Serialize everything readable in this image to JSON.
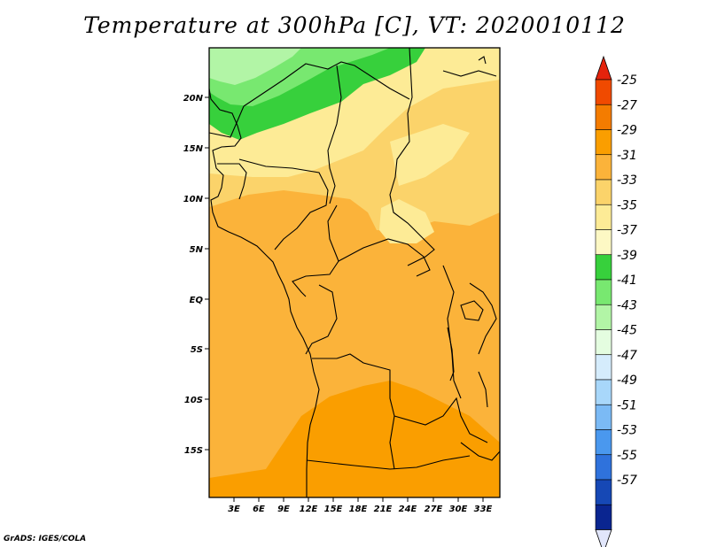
{
  "title": "Temperature at 300hPa [C], VT: 2020010112",
  "credit": "GrADS: IGES/COLA",
  "lat_labels": [
    "20N",
    "15N",
    "10N",
    "5N",
    "EQ",
    "5S",
    "10S",
    "15S"
  ],
  "lon_labels": [
    "3E",
    "6E",
    "9E",
    "12E",
    "15E",
    "18E",
    "21E",
    "24E",
    "27E",
    "30E",
    "33E"
  ],
  "colorbar": {
    "labels": [
      "-25",
      "-27",
      "-29",
      "-31",
      "-33",
      "-35",
      "-37",
      "-39",
      "-41",
      "-43",
      "-45",
      "-47",
      "-49",
      "-51",
      "-53",
      "-55",
      "-57"
    ],
    "colors": [
      "#f04a00",
      "#f47c00",
      "#fa9e00",
      "#fbb33a",
      "#fbd36a",
      "#fdeb96",
      "#fdf8c4",
      "#37d03c",
      "#78e870",
      "#b2f5a6",
      "#e4fde0",
      "#d5ecfc",
      "#a8d7fa",
      "#7bbaf5",
      "#4a98ee",
      "#2f72dc",
      "#1648b5",
      "#0a2590"
    ],
    "over_color": "#e4230c",
    "under_color": "#e1e6fb"
  }
}
